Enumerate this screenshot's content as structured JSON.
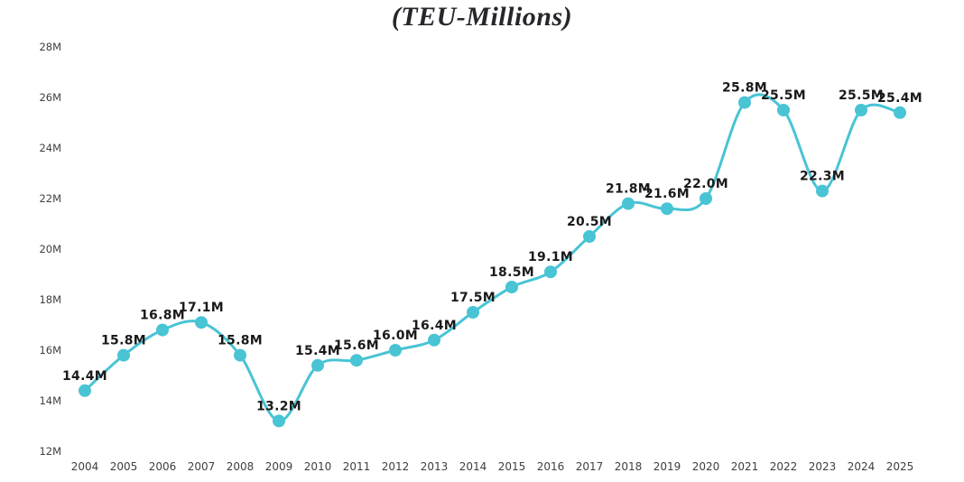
{
  "page": {
    "background_color": "#ffffff"
  },
  "chart_data": {
    "type": "line",
    "title": "(TEU-Millions)",
    "xlabel": "",
    "ylabel": "",
    "categories": [
      "2004",
      "2005",
      "2006",
      "2007",
      "2008",
      "2009",
      "2010",
      "2011",
      "2012",
      "2013",
      "2014",
      "2015",
      "2016",
      "2017",
      "2018",
      "2019",
      "2020",
      "2021",
      "2022",
      "2023",
      "2024",
      "2025"
    ],
    "values": [
      14.4,
      15.8,
      16.8,
      17.1,
      15.8,
      13.2,
      15.4,
      15.6,
      16.0,
      16.4,
      17.5,
      18.5,
      19.1,
      20.5,
      21.8,
      21.6,
      22.0,
      25.8,
      25.5,
      22.3,
      25.5,
      25.4
    ],
    "point_labels": [
      "14.4M",
      "15.8M",
      "16.8M",
      "17.1M",
      "15.8M",
      "13.2M",
      "15.4M",
      "15.6M",
      "16.0M",
      "16.4M",
      "17.5M",
      "18.5M",
      "19.1M",
      "20.5M",
      "21.8M",
      "21.6M",
      "22.0M",
      "25.8M",
      "25.5M",
      "22.3M",
      "25.5M",
      "25.4M"
    ],
    "ylim": [
      12,
      28
    ],
    "y_ticks": [
      {
        "value": 28,
        "label": "28M"
      },
      {
        "value": 26,
        "label": "26M"
      },
      {
        "value": 24,
        "label": "24M"
      },
      {
        "value": 22,
        "label": "22M"
      },
      {
        "value": 20,
        "label": "20M"
      },
      {
        "value": 18,
        "label": "18M"
      },
      {
        "value": 16,
        "label": "16M"
      },
      {
        "value": 14,
        "label": "14M"
      },
      {
        "value": 12,
        "label": "12M"
      }
    ],
    "grid": false,
    "legend": "none",
    "line_color": "#48C4D4",
    "marker_color": "#48C4D4",
    "point_label_color": "#1a1a1a",
    "axis_text_color": "#3f3f3f",
    "title_color": "#26262b"
  }
}
